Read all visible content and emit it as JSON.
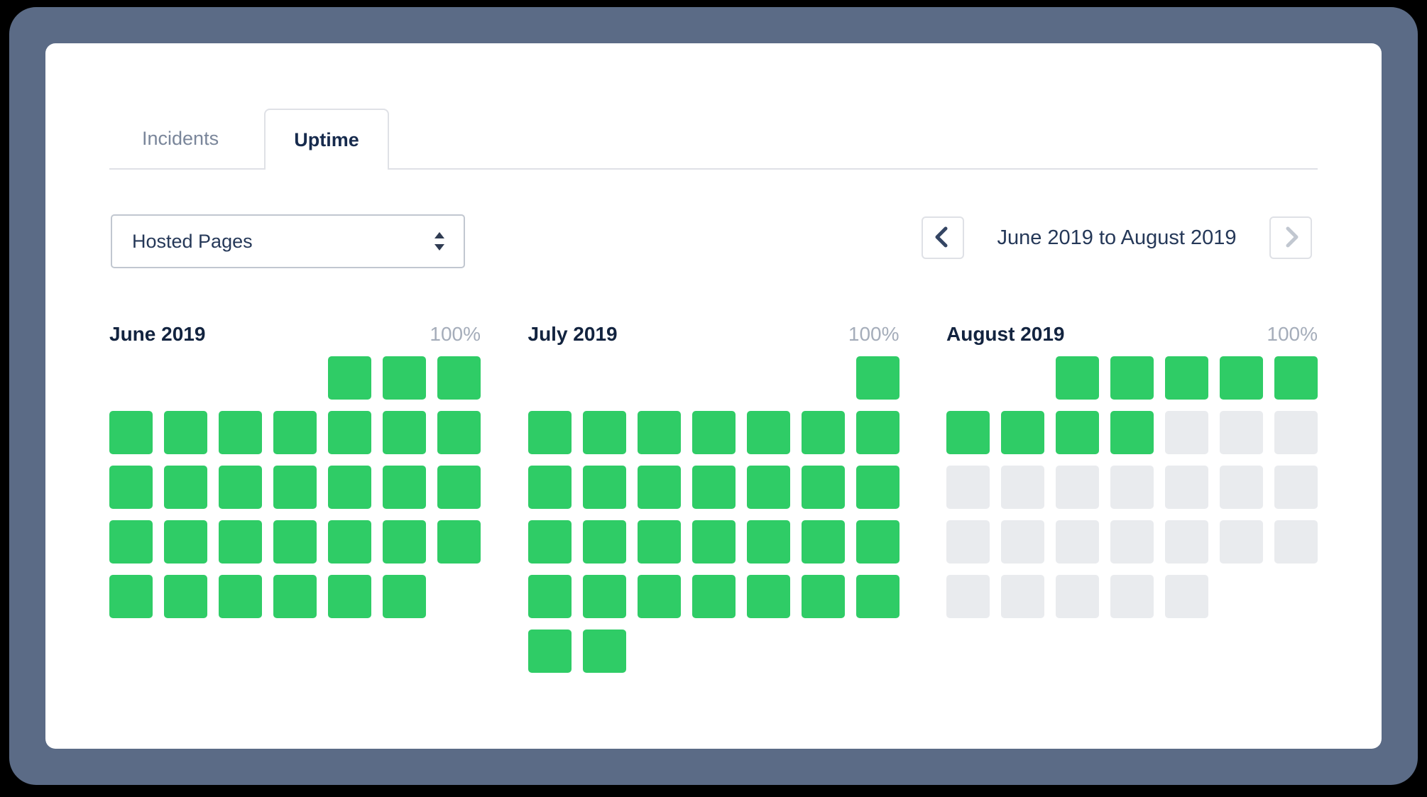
{
  "tabs": {
    "incidents_label": "Incidents",
    "uptime_label": "Uptime"
  },
  "filter_select": {
    "value": "Hosted Pages"
  },
  "pager": {
    "range_label": "June 2019 to August 2019"
  },
  "colors": {
    "up": "#2fcc66",
    "future": "#e9ebee",
    "bezel": "#5b6b86"
  },
  "months": [
    {
      "name": "June 2019",
      "uptime": "100%",
      "rows": [
        [
          "",
          "",
          "",
          "",
          "up",
          "up",
          "up"
        ],
        [
          "up",
          "up",
          "up",
          "up",
          "up",
          "up",
          "up"
        ],
        [
          "up",
          "up",
          "up",
          "up",
          "up",
          "up",
          "up"
        ],
        [
          "up",
          "up",
          "up",
          "up",
          "up",
          "up",
          "up"
        ],
        [
          "up",
          "up",
          "up",
          "up",
          "up",
          "up",
          ""
        ]
      ]
    },
    {
      "name": "July 2019",
      "uptime": "100%",
      "rows": [
        [
          "",
          "",
          "",
          "",
          "",
          "",
          "up"
        ],
        [
          "up",
          "up",
          "up",
          "up",
          "up",
          "up",
          "up"
        ],
        [
          "up",
          "up",
          "up",
          "up",
          "up",
          "up",
          "up"
        ],
        [
          "up",
          "up",
          "up",
          "up",
          "up",
          "up",
          "up"
        ],
        [
          "up",
          "up",
          "up",
          "up",
          "up",
          "up",
          "up"
        ],
        [
          "up",
          "up",
          "",
          "",
          "",
          "",
          ""
        ]
      ]
    },
    {
      "name": "August 2019",
      "uptime": "100%",
      "rows": [
        [
          "",
          "",
          "up",
          "up",
          "up",
          "up",
          "up"
        ],
        [
          "up",
          "up",
          "up",
          "up",
          "future",
          "future",
          "future"
        ],
        [
          "future",
          "future",
          "future",
          "future",
          "future",
          "future",
          "future"
        ],
        [
          "future",
          "future",
          "future",
          "future",
          "future",
          "future",
          "future"
        ],
        [
          "future",
          "future",
          "future",
          "future",
          "future",
          "",
          ""
        ]
      ]
    }
  ]
}
